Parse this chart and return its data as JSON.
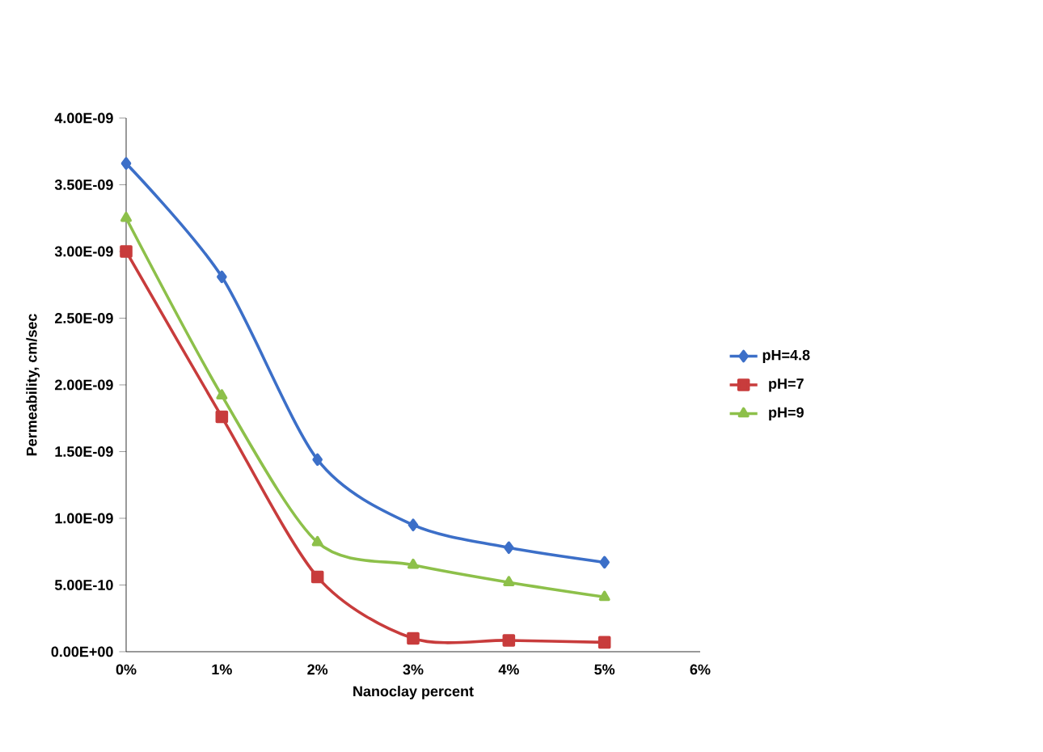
{
  "chart_data": {
    "type": "line",
    "xlabel": "Nanoclay percent",
    "ylabel": "Permeability, cm/sec",
    "x": [
      0,
      1,
      2,
      3,
      4,
      5
    ],
    "xlim": [
      0,
      6
    ],
    "xticks": [
      {
        "value": 0,
        "label": "0%"
      },
      {
        "value": 1,
        "label": "1%"
      },
      {
        "value": 2,
        "label": "2%"
      },
      {
        "value": 3,
        "label": "3%"
      },
      {
        "value": 4,
        "label": "4%"
      },
      {
        "value": 5,
        "label": "5%"
      },
      {
        "value": 6,
        "label": "6%"
      }
    ],
    "ylim": [
      0,
      4e-09
    ],
    "yticks": [
      {
        "value": 0,
        "label": "0.00E+00"
      },
      {
        "value": 5e-10,
        "label": "5.00E-10"
      },
      {
        "value": 1e-09,
        "label": "1.00E-09"
      },
      {
        "value": 1.5e-09,
        "label": "1.50E-09"
      },
      {
        "value": 2e-09,
        "label": "2.00E-09"
      },
      {
        "value": 2.5e-09,
        "label": "2.50E-09"
      },
      {
        "value": 3e-09,
        "label": "3.00E-09"
      },
      {
        "value": 3.5e-09,
        "label": "3.50E-09"
      },
      {
        "value": 4e-09,
        "label": "4.00E-09"
      }
    ],
    "legend": "right",
    "grid": false,
    "series": [
      {
        "name": "pH=4.8",
        "color": "#3c6fc8",
        "marker": "diamond",
        "values": [
          3.66e-09,
          2.81e-09,
          1.44e-09,
          9.5e-10,
          7.8e-10,
          6.7e-10
        ]
      },
      {
        "name": "pH=7",
        "color": "#c83c3c",
        "marker": "square",
        "values": [
          3e-09,
          1.76e-09,
          5.6e-10,
          1e-10,
          8.5e-11,
          7e-11
        ]
      },
      {
        "name": "pH=9",
        "color": "#8dc04a",
        "marker": "triangle",
        "values": [
          3.25e-09,
          1.92e-09,
          8.2e-10,
          6.5e-10,
          5.2e-10,
          4.1e-10
        ]
      }
    ]
  }
}
